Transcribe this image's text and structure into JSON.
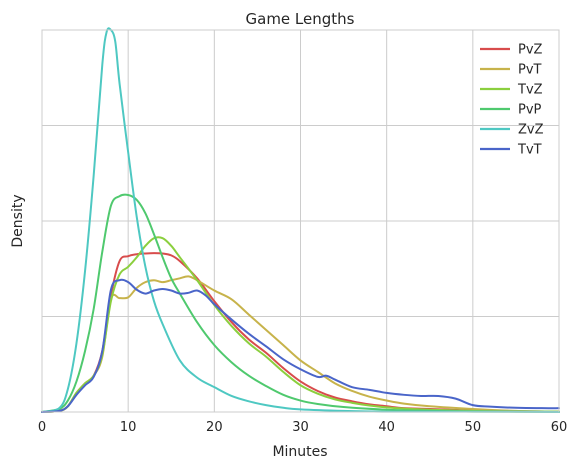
{
  "chart_data": {
    "type": "line",
    "title": "Game Lengths",
    "xlabel": "Minutes",
    "ylabel": "Density",
    "xlim": [
      0,
      60
    ],
    "ylim": [
      0,
      0.1
    ],
    "xticks": [
      0,
      10,
      20,
      30,
      40,
      50,
      60
    ],
    "yticks": [
      0,
      0.025,
      0.05,
      0.075,
      0.1
    ],
    "show_y_tick_labels": false,
    "grid": true,
    "legend_position": "top-right",
    "series": [
      {
        "name": "PvZ",
        "color": "#d84c4c",
        "x": [
          0,
          2,
          3,
          4,
          5,
          6,
          7,
          8,
          9,
          10,
          11,
          12,
          13,
          14,
          15,
          16,
          18,
          20,
          22,
          24,
          26,
          28,
          30,
          32,
          34,
          36,
          38,
          40,
          42,
          45,
          50,
          55,
          60
        ],
        "y": [
          0,
          0.0003,
          0.0015,
          0.005,
          0.0075,
          0.0095,
          0.016,
          0.0305,
          0.0395,
          0.0408,
          0.0413,
          0.0415,
          0.0416,
          0.0415,
          0.041,
          0.0395,
          0.035,
          0.029,
          0.0235,
          0.019,
          0.0155,
          0.0115,
          0.008,
          0.0055,
          0.0038,
          0.0028,
          0.002,
          0.0015,
          0.001,
          0.0008,
          0.0004,
          0.0002,
          0.0001
        ]
      },
      {
        "name": "PvT",
        "color": "#c7b34b",
        "x": [
          0,
          2,
          3,
          4,
          5,
          6,
          7,
          8,
          9,
          10,
          11,
          12,
          13,
          14,
          15,
          16,
          17,
          18,
          20,
          22,
          24,
          26,
          28,
          30,
          32,
          34,
          36,
          38,
          40,
          42,
          45,
          50,
          55,
          60
        ],
        "y": [
          0,
          0.0003,
          0.0015,
          0.005,
          0.0075,
          0.0095,
          0.0145,
          0.0295,
          0.0298,
          0.03,
          0.0325,
          0.034,
          0.0345,
          0.034,
          0.0345,
          0.035,
          0.0355,
          0.0345,
          0.0318,
          0.0295,
          0.0255,
          0.0215,
          0.0175,
          0.0135,
          0.0105,
          0.0075,
          0.0055,
          0.004,
          0.003,
          0.0022,
          0.0015,
          0.0008,
          0.0003,
          0.0001
        ]
      },
      {
        "name": "TvZ",
        "color": "#8bcf3e",
        "x": [
          0,
          2,
          3,
          4,
          5,
          6,
          7,
          8,
          9,
          10,
          11,
          12,
          13,
          14,
          15,
          16,
          18,
          20,
          22,
          24,
          26,
          28,
          30,
          32,
          34,
          36,
          38,
          40,
          42,
          45,
          50,
          55,
          60
        ],
        "y": [
          0,
          0.0003,
          0.0015,
          0.005,
          0.0075,
          0.0095,
          0.015,
          0.029,
          0.036,
          0.038,
          0.0405,
          0.0435,
          0.0455,
          0.0455,
          0.0435,
          0.0405,
          0.0345,
          0.028,
          0.0225,
          0.018,
          0.0145,
          0.0105,
          0.007,
          0.0048,
          0.0033,
          0.0024,
          0.0017,
          0.0012,
          0.0009,
          0.0006,
          0.0003,
          0.0001,
          0.0001
        ]
      },
      {
        "name": "PvP",
        "color": "#4fc96e",
        "x": [
          0,
          2,
          3,
          4,
          5,
          6,
          7,
          8,
          9,
          10,
          11,
          12,
          13,
          14,
          15,
          16,
          18,
          20,
          22,
          24,
          26,
          28,
          30,
          32,
          35,
          40,
          45,
          50,
          55,
          60
        ],
        "y": [
          0,
          0.0008,
          0.003,
          0.008,
          0.016,
          0.027,
          0.042,
          0.054,
          0.0565,
          0.0568,
          0.0555,
          0.052,
          0.0465,
          0.0405,
          0.035,
          0.031,
          0.0235,
          0.0175,
          0.013,
          0.0095,
          0.0068,
          0.0045,
          0.003,
          0.0021,
          0.0013,
          0.0006,
          0.0003,
          0.0001,
          0.0001,
          0
        ]
      },
      {
        "name": "ZvZ",
        "color": "#4ec8c2",
        "x": [
          0,
          2,
          3,
          4,
          5,
          6,
          7,
          7.5,
          8,
          8.5,
          9,
          10,
          11,
          12,
          13,
          14,
          16,
          18,
          20,
          22,
          24,
          26,
          28,
          30,
          35,
          40,
          50,
          60
        ],
        "y": [
          0,
          0.001,
          0.006,
          0.018,
          0.037,
          0.062,
          0.091,
          0.0995,
          0.1,
          0.097,
          0.086,
          0.068,
          0.051,
          0.038,
          0.029,
          0.023,
          0.0135,
          0.009,
          0.0065,
          0.0042,
          0.0028,
          0.0018,
          0.0011,
          0.0007,
          0.0003,
          0.0001,
          0.0001,
          0
        ]
      },
      {
        "name": "TvT",
        "color": "#4a65c9",
        "x": [
          0,
          2,
          3,
          4,
          5,
          6,
          7,
          8,
          9,
          10,
          11,
          12,
          13,
          14,
          15,
          16,
          17,
          18,
          19,
          20,
          22,
          24,
          26,
          28,
          30,
          32,
          33,
          34,
          36,
          38,
          40,
          42,
          44,
          46,
          48,
          50,
          52,
          55,
          58,
          60
        ],
        "y": [
          0,
          0.0003,
          0.0015,
          0.0045,
          0.007,
          0.0092,
          0.016,
          0.032,
          0.0345,
          0.034,
          0.032,
          0.031,
          0.0318,
          0.0322,
          0.0318,
          0.031,
          0.0312,
          0.0318,
          0.0305,
          0.0282,
          0.0242,
          0.0205,
          0.0172,
          0.0138,
          0.0112,
          0.0092,
          0.0095,
          0.0085,
          0.0065,
          0.0058,
          0.005,
          0.0045,
          0.0042,
          0.0042,
          0.0035,
          0.0018,
          0.0014,
          0.0011,
          0.001,
          0.001
        ]
      }
    ]
  }
}
